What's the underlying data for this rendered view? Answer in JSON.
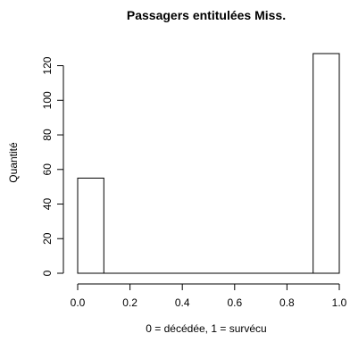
{
  "chart_data": {
    "type": "bar",
    "title": "Passagers entitulées Miss.",
    "xlabel": "0 = décédée, 1 = survécu",
    "ylabel": "Quantité",
    "xlim": [
      0,
      1
    ],
    "ylim": [
      0,
      127
    ],
    "x_ticks": [
      "0.0",
      "0.2",
      "0.4",
      "0.6",
      "0.8",
      "1.0"
    ],
    "y_ticks": [
      "0",
      "20",
      "40",
      "60",
      "80",
      "100",
      "120"
    ],
    "bins": [
      {
        "start": 0.0,
        "end": 0.1,
        "value": 55
      },
      {
        "start": 0.1,
        "end": 0.2,
        "value": 0
      },
      {
        "start": 0.2,
        "end": 0.3,
        "value": 0
      },
      {
        "start": 0.3,
        "end": 0.4,
        "value": 0
      },
      {
        "start": 0.4,
        "end": 0.5,
        "value": 0
      },
      {
        "start": 0.5,
        "end": 0.6,
        "value": 0
      },
      {
        "start": 0.6,
        "end": 0.7,
        "value": 0
      },
      {
        "start": 0.7,
        "end": 0.8,
        "value": 0
      },
      {
        "start": 0.8,
        "end": 0.9,
        "value": 0
      },
      {
        "start": 0.9,
        "end": 1.0,
        "value": 127
      }
    ],
    "grid": false,
    "legend": "none"
  }
}
